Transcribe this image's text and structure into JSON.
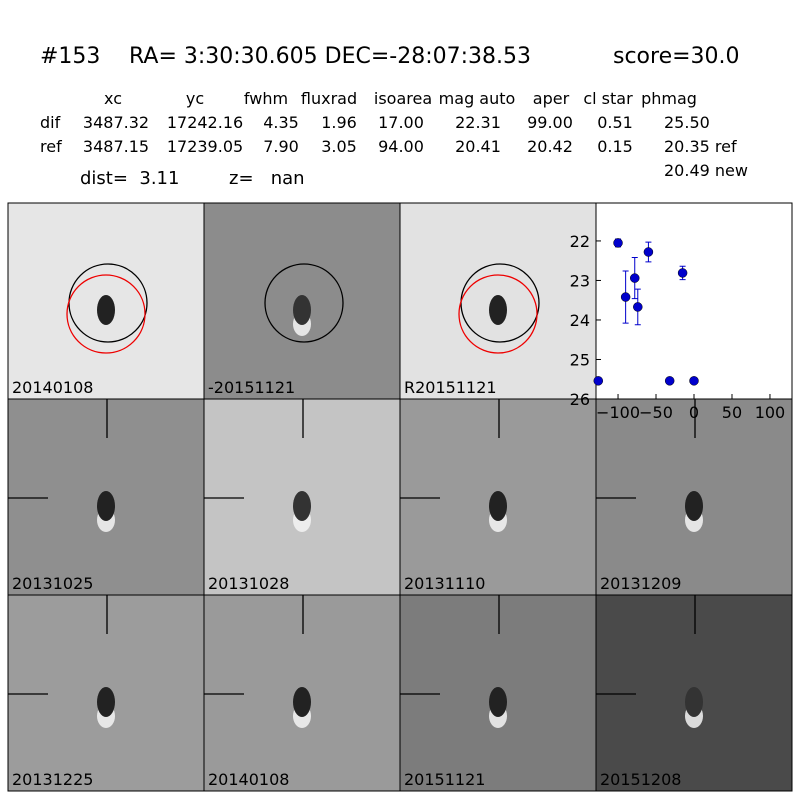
{
  "header": {
    "object": "#153",
    "coords": "RA= 3:30:30.605 DEC=-28:07:38.53",
    "score": "score=30.0"
  },
  "table": {
    "columns": [
      "xc",
      "yc",
      "fwhm",
      "fluxrad",
      "isoarea",
      "mag auto",
      "aper",
      "cl star",
      "phmag"
    ],
    "rows": [
      [
        "dif",
        "3487.32",
        "17242.16",
        "4.35",
        "1.96",
        "17.00",
        "22.31",
        "99.00",
        "0.51",
        "25.50"
      ],
      [
        "ref",
        "3487.15",
        "17239.05",
        "7.90",
        "3.05",
        "94.00",
        "20.41",
        "20.42",
        "0.15",
        "20.35 ref"
      ]
    ],
    "extra": "20.49 new"
  },
  "dist": "dist=  3.11",
  "z": "z=   nan",
  "panels": [
    "20140108",
    "-20151121",
    "R20151121",
    "20131025",
    "20131028",
    "20131110",
    "20131209",
    "20131225",
    "20140108",
    "20151121",
    "20151208"
  ],
  "chart_data": {
    "type": "scatter",
    "color": "#0000cc",
    "x": [
      -126,
      -100,
      -90,
      -78,
      -74,
      -60,
      -32,
      -15,
      0
    ],
    "values": [
      25.54,
      22.05,
      23.42,
      22.94,
      23.67,
      22.28,
      25.54,
      22.81,
      25.54
    ],
    "errors": [
      null,
      0.1,
      0.66,
      0.52,
      0.45,
      0.25,
      null,
      0.17,
      null
    ],
    "xlim": [
      -129,
      129
    ],
    "ylim": [
      26,
      21.04
    ],
    "xticks": [
      {
        "value": -100,
        "label": "−100"
      },
      {
        "value": -50,
        "label": "−50"
      },
      0,
      50,
      100
    ],
    "yticks": [
      22,
      23,
      24,
      25,
      26
    ]
  }
}
